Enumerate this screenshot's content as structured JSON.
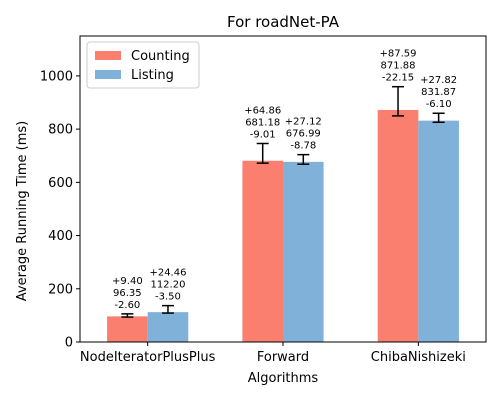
{
  "chart_data": {
    "type": "bar",
    "title": "For roadNet-PA",
    "xlabel": "Algorithms",
    "ylabel": "Average Running Time (ms)",
    "ylim": [
      0,
      1150
    ],
    "yticks": [
      0,
      200,
      400,
      600,
      800,
      1000
    ],
    "categories": [
      "NodeIteratorPlusPlus",
      "Forward",
      "ChibaNishizeki"
    ],
    "legend_position": "top-left",
    "grid": false,
    "series": [
      {
        "name": "Counting",
        "color": "#fa7f6f",
        "values": [
          96.35,
          681.18,
          871.88
        ],
        "err_plus": [
          9.4,
          64.86,
          87.59
        ],
        "err_minus": [
          2.6,
          9.01,
          22.15
        ],
        "labels": [
          [
            "+9.40",
            "96.35",
            "-2.60"
          ],
          [
            "+64.86",
            "681.18",
            "-9.01"
          ],
          [
            "+87.59",
            "871.88",
            "-22.15"
          ]
        ]
      },
      {
        "name": "Listing",
        "color": "#80b1d8",
        "values": [
          112.2,
          676.99,
          831.87
        ],
        "err_plus": [
          24.46,
          27.12,
          27.82
        ],
        "err_minus": [
          3.5,
          8.78,
          6.1
        ],
        "labels": [
          [
            "+24.46",
            "112.20",
            "-3.50"
          ],
          [
            "+27.12",
            "676.99",
            "-8.78"
          ],
          [
            "+27.82",
            "831.87",
            "-6.10"
          ]
        ]
      }
    ]
  }
}
